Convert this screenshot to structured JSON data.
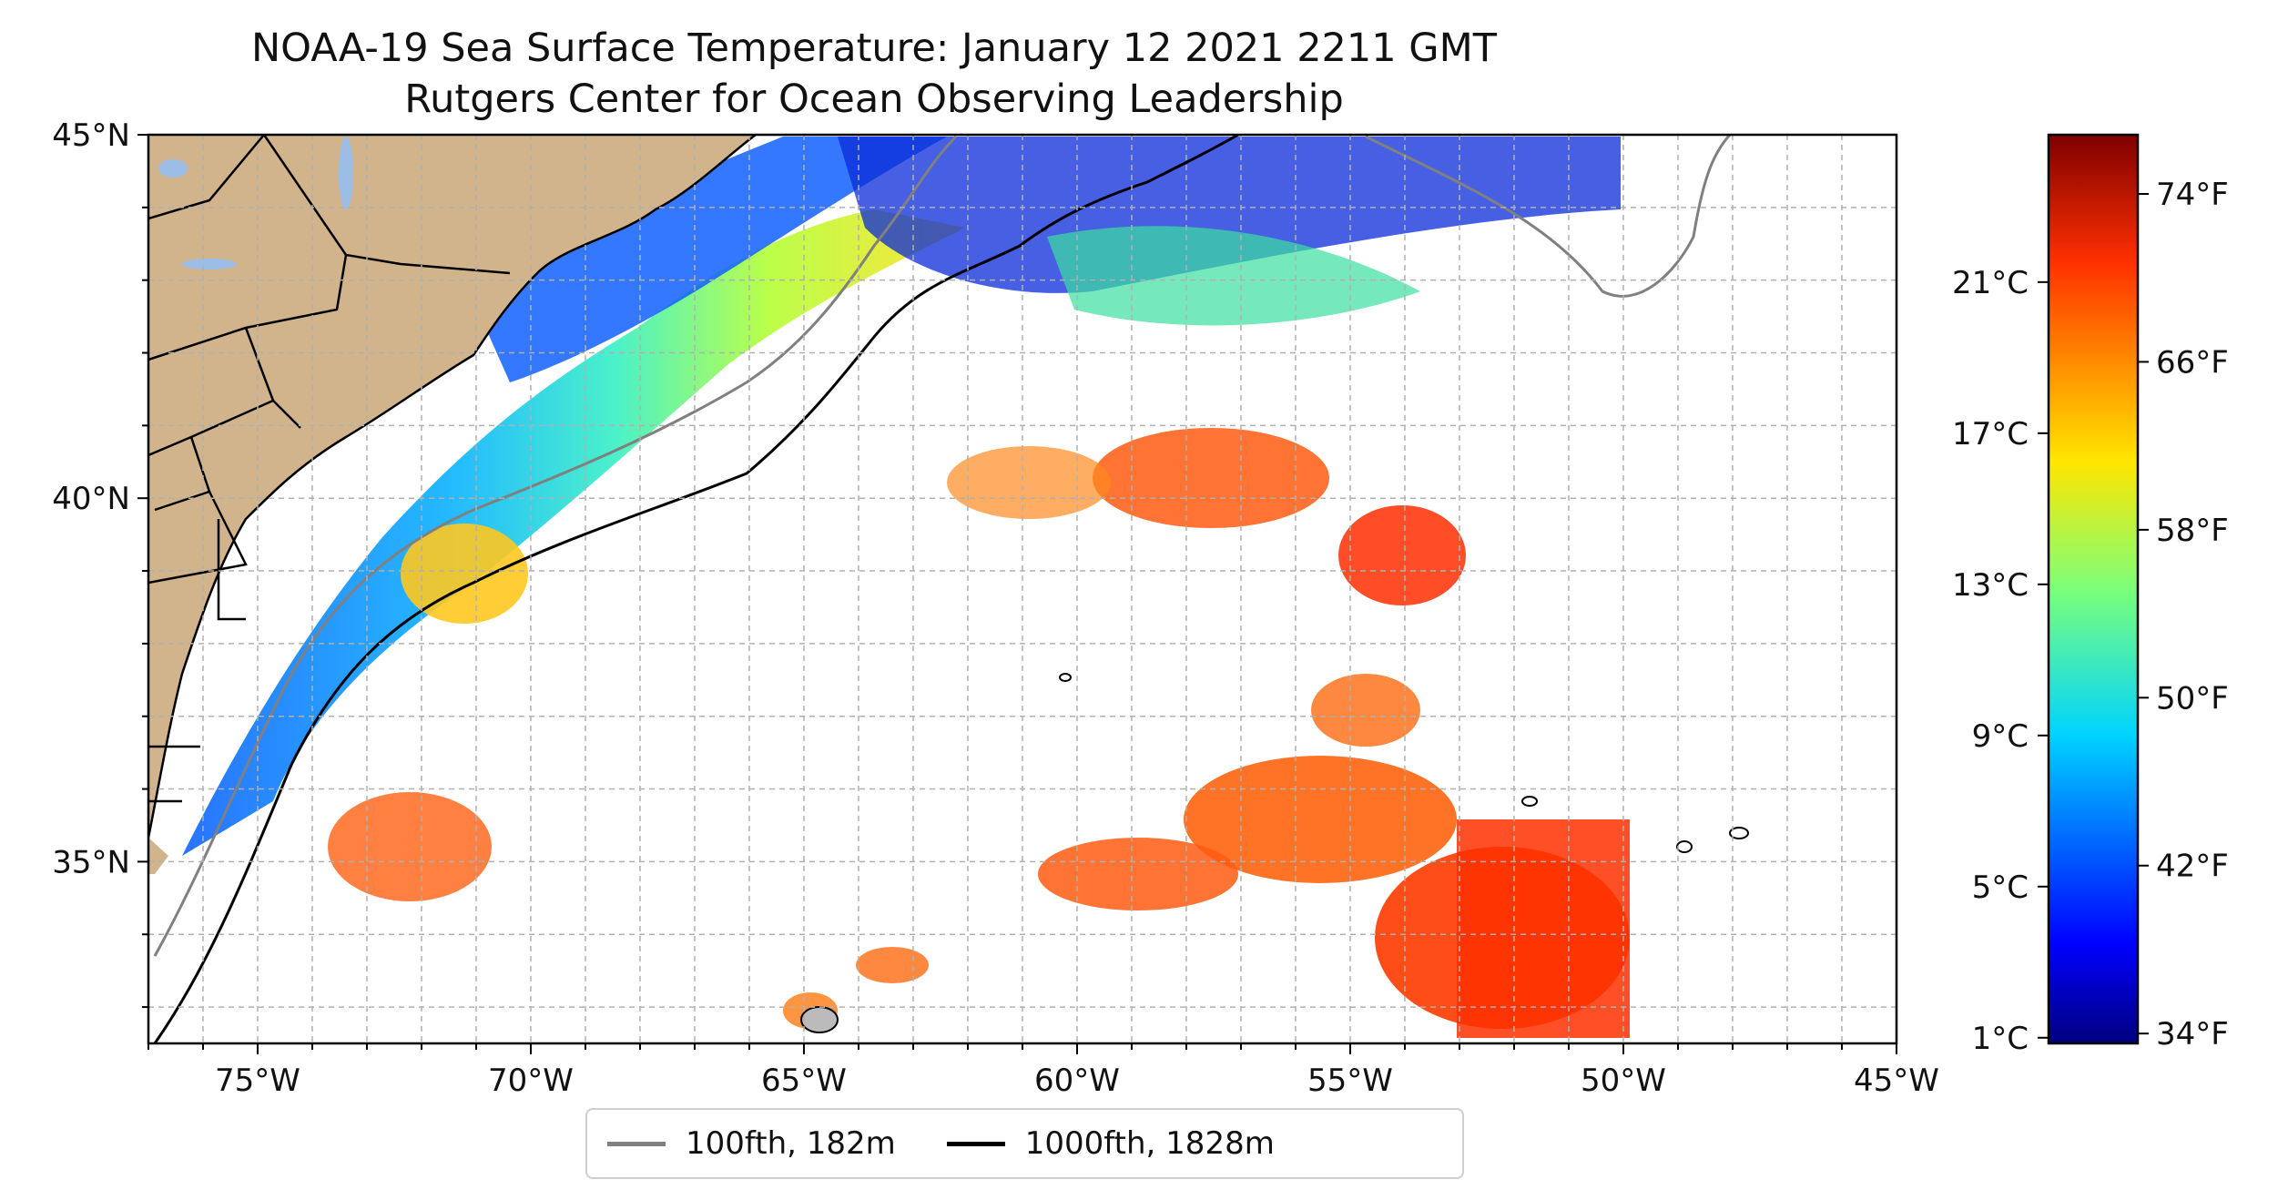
{
  "title": {
    "line1": "NOAA-19 Sea Surface Temperature: January 12 2021 2211 GMT",
    "line2": "Rutgers Center for Ocean Observing Leadership"
  },
  "map": {
    "lon_range": [
      -77,
      -45
    ],
    "lat_range": [
      32.5,
      45
    ],
    "x_ticks": [
      {
        "value": -75,
        "label": "75°W"
      },
      {
        "value": -70,
        "label": "70°W"
      },
      {
        "value": -65,
        "label": "65°W"
      },
      {
        "value": -60,
        "label": "60°W"
      },
      {
        "value": -55,
        "label": "55°W"
      },
      {
        "value": -50,
        "label": "50°W"
      },
      {
        "value": -45,
        "label": "45°W"
      }
    ],
    "y_ticks": [
      {
        "value": 45,
        "label": "45°N"
      },
      {
        "value": 40,
        "label": "40°N"
      },
      {
        "value": 35,
        "label": "35°N"
      }
    ],
    "grid": "dashed",
    "colors": {
      "land": "#d2b48c",
      "lakes": "#9cbde6",
      "contour_100fth": "#808080",
      "contour_1000fth": "#000000"
    }
  },
  "colorbar": {
    "colormap": "jet",
    "celsius_ticks": [
      {
        "value": 1,
        "label": "1°C"
      },
      {
        "value": 5,
        "label": "5°C"
      },
      {
        "value": 9,
        "label": "9°C"
      },
      {
        "value": 13,
        "label": "13°C"
      },
      {
        "value": 17,
        "label": "17°C"
      },
      {
        "value": 21,
        "label": "21°C"
      }
    ],
    "fahrenheit_ticks": [
      {
        "value": 34,
        "label": "34°F"
      },
      {
        "value": 42,
        "label": "42°F"
      },
      {
        "value": 50,
        "label": "50°F"
      },
      {
        "value": 58,
        "label": "58°F"
      },
      {
        "value": 66,
        "label": "66°F"
      },
      {
        "value": 74,
        "label": "74°F"
      }
    ]
  },
  "legend": {
    "items": [
      {
        "label": "100fth, 182m",
        "color": "#808080"
      },
      {
        "label": "1000fth, 1828m",
        "color": "#000000"
      }
    ]
  }
}
